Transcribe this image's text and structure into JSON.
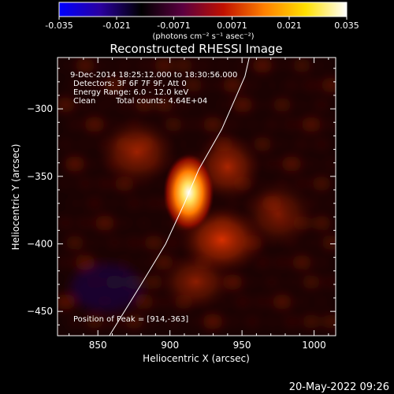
{
  "colorbar": {
    "ticks": [
      "-0.035",
      "-0.021",
      "-0.0071",
      "0.0071",
      "0.021",
      "0.035"
    ],
    "tick_values": [
      -0.035,
      -0.021,
      -0.0071,
      0.0071,
      0.021,
      0.035
    ],
    "range": [
      -0.035,
      0.035
    ],
    "unit_label": "(photons cm⁻² s⁻¹ asec⁻²)",
    "colormap": [
      "#0000ff",
      "#2a00a0",
      "#000000",
      "#5a0040",
      "#c01000",
      "#ff8000",
      "#ffe000",
      "#ffffff"
    ]
  },
  "chart_data": {
    "type": "heatmap",
    "title": "Reconstructed RHESSI Image",
    "xlabel": "Heliocentric X (arcsec)",
    "ylabel": "Heliocentric Y (arcsec)",
    "xlim": [
      822,
      1015
    ],
    "ylim": [
      -468,
      -262
    ],
    "xticks": [
      850,
      900,
      950,
      1000
    ],
    "yticks": [
      -300,
      -350,
      -400,
      -450
    ],
    "annotations": {
      "time_range": "9-Dec-2014 18:25:12.000 to 18:30:56.000",
      "detectors": "Detectors: 3F 6F 7F 9F, Att 0",
      "energy": "Energy Range: 6.0 - 12.0 keV",
      "method": "Clean",
      "counts": "Total counts: 4.64E+04",
      "peak": "Position of Peak = [914,-363]"
    },
    "peak": [
      914,
      -363
    ],
    "sources": [
      {
        "x": 913,
        "y": -362,
        "sx": 8,
        "sy": 13,
        "amp": 0.035
      },
      {
        "x": 936,
        "y": -397,
        "sx": 14,
        "sy": 12,
        "amp": 0.014
      },
      {
        "x": 940,
        "y": -343,
        "sx": 11,
        "sy": 12,
        "amp": 0.009
      },
      {
        "x": 877,
        "y": -332,
        "sx": 13,
        "sy": 12,
        "amp": 0.008
      },
      {
        "x": 918,
        "y": -428,
        "sx": 12,
        "sy": 10,
        "amp": 0.007
      },
      {
        "x": 975,
        "y": -378,
        "sx": 12,
        "sy": 12,
        "amp": 0.006
      }
    ],
    "limb_points": [
      [
        858,
        -468
      ],
      [
        880,
        -430
      ],
      [
        897,
        -400
      ],
      [
        910,
        -370
      ],
      [
        920,
        -345
      ],
      [
        936,
        -315
      ],
      [
        952,
        -276
      ],
      [
        955,
        -262
      ]
    ]
  },
  "footer": {
    "timestamp": "20-May-2022 09:26"
  }
}
